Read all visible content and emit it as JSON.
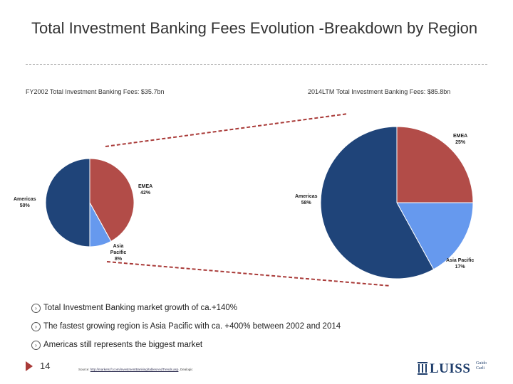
{
  "slide": {
    "title": "Total Investment Banking Fees Evolution -Breakdown by Region",
    "page_number": "14",
    "source_label": "Source:",
    "source_link": "http://markets.ft.com/investmentBanking/tablesAndTrends.asp",
    "source_suffix": ", Dealogic",
    "logo_text": "LUISS",
    "logo_small": [
      "Guido",
      "Carli"
    ]
  },
  "bullets": [
    "Total Investment Banking market growth of ca.+140%",
    "The fastest growing region is Asia Pacific with ca. +400% between 2002 and 2014",
    "Americas still represents the biggest market"
  ],
  "colors": {
    "americas": "#1f4479",
    "emea": "#b24c48",
    "asia_pacific": "#6699ee",
    "connector": "#a93a38",
    "footer_line": "#c8c8c8"
  },
  "chart_data": [
    {
      "type": "pie",
      "title": "FY2002 Total Investment Banking Fees: $35.7bn",
      "categories": [
        "EMEA",
        "Asia Pacific",
        "Americas"
      ],
      "values": [
        42,
        8,
        50
      ],
      "labels": [
        "42%",
        "8%",
        "50%"
      ]
    },
    {
      "type": "pie",
      "title": "2014LTM Total Investment Banking Fees: $85.8bn",
      "categories": [
        "EMEA",
        "Asia Pacific",
        "Americas"
      ],
      "values": [
        25,
        17,
        58
      ],
      "labels": [
        "25%",
        "17%",
        "58%"
      ]
    }
  ]
}
